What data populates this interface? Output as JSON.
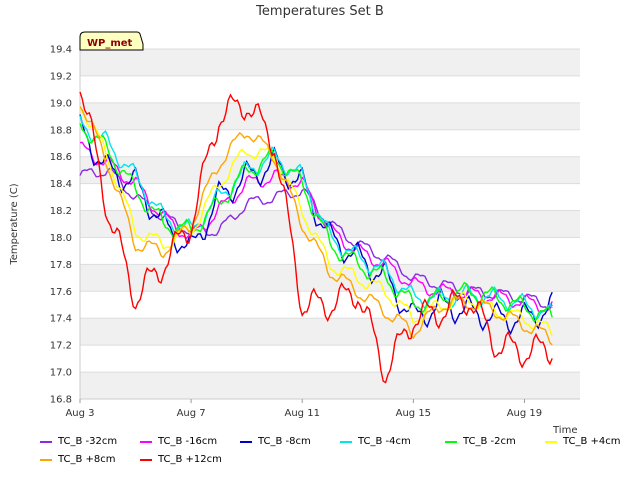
{
  "chart_data": {
    "type": "line",
    "title": "Temperatures Set B",
    "xlabel": "Time",
    "ylabel": "Temperature (C)",
    "badge": "WP_met",
    "xlim": [
      "2016-08-03",
      "2016-08-21"
    ],
    "ylim": [
      16.8,
      19.4
    ],
    "x_ticks": [
      "Aug 3",
      "Aug 7",
      "Aug 11",
      "Aug 15",
      "Aug 19"
    ],
    "y_ticks": [
      "16.8",
      "17.0",
      "17.2",
      "17.4",
      "17.6",
      "17.8",
      "18.0",
      "18.2",
      "18.4",
      "18.6",
      "18.8",
      "19.0",
      "19.2",
      "19.4"
    ],
    "grid": true,
    "legend_position": "bottom",
    "x": [
      "2016-08-03",
      "2016-08-04",
      "2016-08-05",
      "2016-08-06",
      "2016-08-07",
      "2016-08-08",
      "2016-08-09",
      "2016-08-10",
      "2016-08-11",
      "2016-08-12",
      "2016-08-13",
      "2016-08-14",
      "2016-08-15",
      "2016-08-16",
      "2016-08-17",
      "2016-08-18",
      "2016-08-19",
      "2016-08-20"
    ],
    "series": [
      {
        "name": "TC_B -32cm",
        "color": "#8a2be2",
        "values": [
          18.46,
          18.5,
          18.3,
          18.15,
          18.05,
          18.05,
          18.25,
          18.3,
          18.35,
          18.1,
          17.95,
          17.85,
          17.7,
          17.65,
          17.6,
          17.58,
          17.55,
          17.5
        ]
      },
      {
        "name": "TC_B -16cm",
        "color": "#ff00ff",
        "values": [
          18.66,
          18.55,
          18.4,
          18.15,
          18.0,
          18.2,
          18.4,
          18.45,
          18.4,
          18.05,
          17.9,
          17.8,
          17.65,
          17.6,
          17.58,
          17.56,
          17.52,
          17.48
        ]
      },
      {
        "name": "TC_B -8cm",
        "color": "#0000cd",
        "values": [
          18.8,
          18.5,
          18.4,
          18.1,
          17.9,
          18.3,
          18.45,
          18.55,
          18.4,
          18.0,
          17.85,
          17.7,
          17.4,
          17.5,
          17.45,
          17.4,
          17.4,
          17.48
        ]
      },
      {
        "name": "TC_B -4cm",
        "color": "#00e5ee",
        "values": [
          18.85,
          18.7,
          18.45,
          18.15,
          18.05,
          18.3,
          18.5,
          18.6,
          18.45,
          18.0,
          17.85,
          17.75,
          17.55,
          17.55,
          17.58,
          17.55,
          17.5,
          17.42
        ]
      },
      {
        "name": "TC_B -2cm",
        "color": "#00ff00",
        "values": [
          18.84,
          18.65,
          18.35,
          18.1,
          18.05,
          18.25,
          18.5,
          18.6,
          18.4,
          17.95,
          17.8,
          17.7,
          17.5,
          17.55,
          17.6,
          17.55,
          17.48,
          17.4
        ]
      },
      {
        "name": "TC_B +4cm",
        "color": "#ffff00",
        "values": [
          19.0,
          18.6,
          18.05,
          17.95,
          18.05,
          18.4,
          18.65,
          18.6,
          18.2,
          17.8,
          17.7,
          17.6,
          17.4,
          17.5,
          17.55,
          17.45,
          17.4,
          17.3
        ]
      },
      {
        "name": "TC_B +8cm",
        "color": "#ffa500",
        "values": [
          19.02,
          18.55,
          17.95,
          17.9,
          18.1,
          18.55,
          18.8,
          18.6,
          18.1,
          17.75,
          17.6,
          17.45,
          17.3,
          17.5,
          17.52,
          17.45,
          17.35,
          17.25
        ]
      },
      {
        "name": "TC_B +12cm",
        "color": "#ff0000",
        "values": [
          19.16,
          18.2,
          17.55,
          17.8,
          18.1,
          18.9,
          19.0,
          18.7,
          17.5,
          17.5,
          17.6,
          17.0,
          17.4,
          17.45,
          17.55,
          17.2,
          17.15,
          17.18
        ]
      }
    ]
  }
}
